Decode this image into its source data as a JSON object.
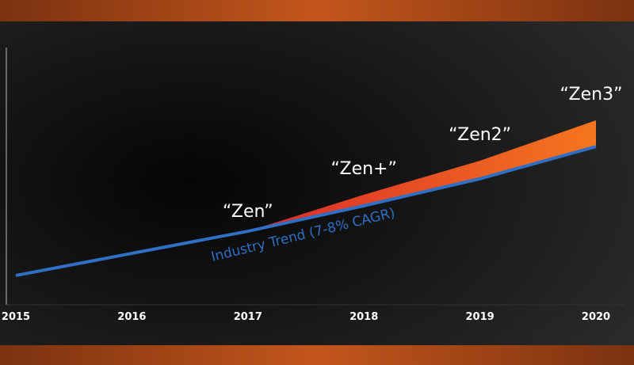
{
  "chart_data": {
    "type": "line",
    "categories": [
      "2015",
      "2016",
      "2017",
      "2018",
      "2019",
      "2020"
    ],
    "series": [
      {
        "name": "Industry Trend (7-8% CAGR)",
        "color": "#2f6fc4",
        "values": [
          11.4,
          20,
          28.6,
          38.5,
          49,
          61.5
        ]
      },
      {
        "name": "Zen",
        "color": "#f05a28",
        "values": [
          null,
          null,
          28.6,
          42.8,
          56,
          71.7
        ]
      }
    ],
    "annotations": [
      "“Zen”",
      "“Zen+”",
      "“Zen2”",
      "“Zen3”"
    ],
    "ylim": [
      0,
      100
    ]
  }
}
